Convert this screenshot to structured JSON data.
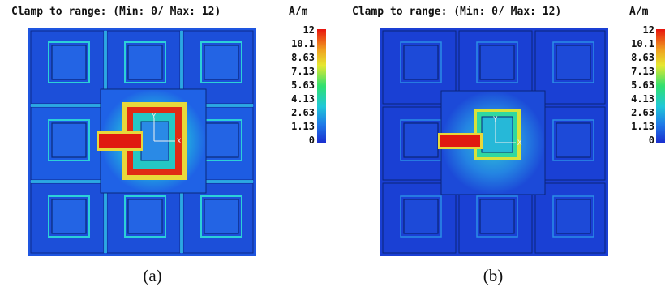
{
  "panels": [
    {
      "id": "a",
      "header": "Clamp to range: (Min: 0/ Max: 12)",
      "unit": "A/m",
      "caption": "(a)",
      "ticks": [
        "12",
        "10.1",
        "8.63",
        "7.13",
        "5.63",
        "4.13",
        "2.63",
        "1.13",
        "0"
      ],
      "axis_labels": {
        "y": "Y",
        "x": "X"
      }
    },
    {
      "id": "b",
      "header": "Clamp to range: (Min: 0/ Max: 12)",
      "unit": "A/m",
      "caption": "(b)",
      "ticks": [
        "12",
        "10.1",
        "8.63",
        "7.13",
        "5.63",
        "4.13",
        "2.63",
        "1.13",
        "0"
      ],
      "axis_labels": {
        "y": "Y",
        "x": "X"
      }
    }
  ],
  "colors": {
    "background": "#1a3fd6",
    "low": "#1f5ae8",
    "mid_low": "#1fa3e0",
    "mid": "#28d6b8",
    "mid_high": "#d6e832",
    "high": "#e81e12"
  }
}
